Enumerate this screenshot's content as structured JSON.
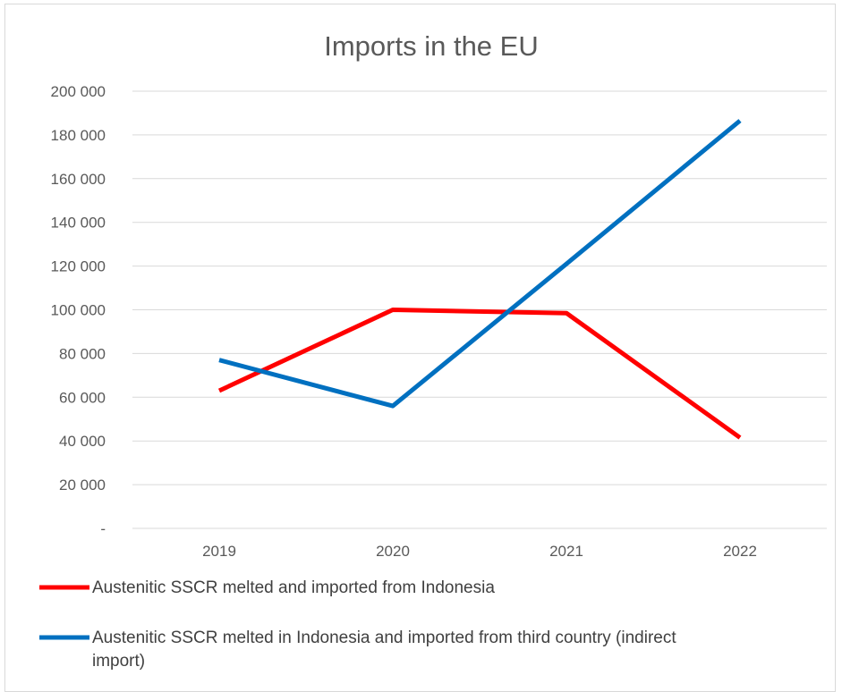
{
  "chart_data": {
    "type": "line",
    "title": "Imports in the EU",
    "categories": [
      "2019",
      "2020",
      "2021",
      "2022"
    ],
    "y_ticks": [
      "-",
      "20 000",
      "40 000",
      "60 000",
      "80 000",
      "100 000",
      "120 000",
      "140 000",
      "160 000",
      "180 000",
      "200 000"
    ],
    "ylim": [
      0,
      200000
    ],
    "grid": true,
    "legend_position": "bottom",
    "series": [
      {
        "name": "Austenitic SSCR melted and imported from Indonesia",
        "color": "#ff0000",
        "values": [
          63000,
          100000,
          98500,
          41500
        ]
      },
      {
        "name": "Austenitic SSCR melted in Indonesia and imported from third country (indirect import)",
        "name_lines": [
          "Austenitic SSCR melted in Indonesia and imported from third country (indirect",
          "import)"
        ],
        "color": "#0070c0",
        "values": [
          77000,
          56000,
          121000,
          186500
        ]
      }
    ]
  }
}
